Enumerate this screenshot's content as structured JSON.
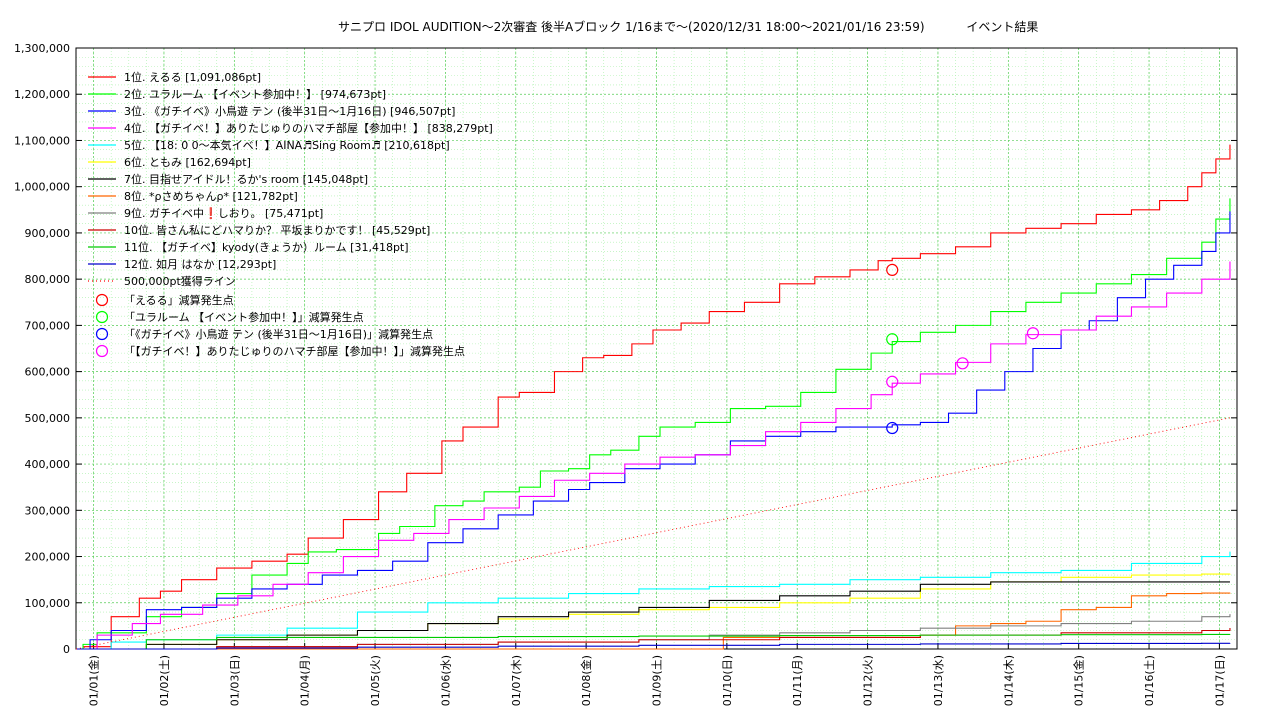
{
  "title": {
    "main": "サニプロ IDOL AUDITION〜2次審査 後半Aブロック 1/16まで〜(2020/12/31 18:00〜2021/01/16 23:59)",
    "suffix": "イベント結果"
  },
  "chart_data": {
    "type": "line",
    "ylim": [
      0,
      1300000
    ],
    "xlim": [
      0,
      16.5
    ],
    "grid": true,
    "legend_position": "top-left",
    "y_ticks": [
      {
        "value": 0,
        "label": "0"
      },
      {
        "value": 100000,
        "label": "100,000"
      },
      {
        "value": 200000,
        "label": "200,000"
      },
      {
        "value": 300000,
        "label": "300,000"
      },
      {
        "value": 400000,
        "label": "400,000"
      },
      {
        "value": 500000,
        "label": "500,000"
      },
      {
        "value": 600000,
        "label": "600,000"
      },
      {
        "value": 700000,
        "label": "700,000"
      },
      {
        "value": 800000,
        "label": "800,000"
      },
      {
        "value": 900000,
        "label": "900,000"
      },
      {
        "value": 1000000,
        "label": "1,000,000"
      },
      {
        "value": 1100000,
        "label": "1,100,000"
      },
      {
        "value": 1200000,
        "label": "1,200,000"
      },
      {
        "value": 1300000,
        "label": "1,300,000"
      }
    ],
    "x_ticks": [
      {
        "value": 0.25,
        "label": "01/01(金)"
      },
      {
        "value": 1.25,
        "label": "01/02(土)"
      },
      {
        "value": 2.25,
        "label": "01/03(日)"
      },
      {
        "value": 3.25,
        "label": "01/04(月)"
      },
      {
        "value": 4.25,
        "label": "01/05(火)"
      },
      {
        "value": 5.25,
        "label": "01/06(水)"
      },
      {
        "value": 6.25,
        "label": "01/07(木)"
      },
      {
        "value": 7.25,
        "label": "01/08(金)"
      },
      {
        "value": 8.25,
        "label": "01/09(土)"
      },
      {
        "value": 9.25,
        "label": "01/10(日)"
      },
      {
        "value": 10.25,
        "label": "01/11(月)"
      },
      {
        "value": 11.25,
        "label": "01/12(火)"
      },
      {
        "value": 12.25,
        "label": "01/13(水)"
      },
      {
        "value": 13.25,
        "label": "01/14(木)"
      },
      {
        "value": 14.25,
        "label": "01/15(金)"
      },
      {
        "value": 15.25,
        "label": "01/16(土)"
      },
      {
        "value": 16.25,
        "label": "01/17(日)"
      }
    ],
    "series": [
      {
        "name": "1位. えるる [1,091,086pt]",
        "color": "#ff0000",
        "x": [
          0,
          0.1,
          0.5,
          0.9,
          1.2,
          1.5,
          2,
          2.5,
          3,
          3.3,
          3.8,
          4.3,
          4.7,
          5.2,
          5.5,
          6.0,
          6.3,
          6.8,
          7.2,
          7.5,
          7.9,
          8.2,
          8.6,
          9,
          9.5,
          10,
          10.5,
          11,
          11.4,
          11.6,
          12.0,
          12.5,
          13.0,
          13.5,
          14.0,
          14.5,
          15.0,
          15.4,
          15.8,
          16.0,
          16.2,
          16.4
        ],
        "y": [
          0,
          5000,
          70000,
          110000,
          125000,
          150000,
          175000,
          190000,
          205000,
          240000,
          280000,
          340000,
          380000,
          450000,
          480000,
          545000,
          555000,
          600000,
          630000,
          635000,
          660000,
          690000,
          705000,
          730000,
          750000,
          790000,
          805000,
          820000,
          840000,
          845000,
          855000,
          870000,
          900000,
          910000,
          920000,
          940000,
          950000,
          970000,
          1000000,
          1030000,
          1060000,
          1091086
        ]
      },
      {
        "name": "2位. ユラルーム 【イベント参加中！】 [974,673pt]",
        "color": "#00ff00",
        "x": [
          0,
          0.1,
          0.3,
          1,
          1.5,
          2,
          2.5,
          3,
          3.3,
          3.7,
          4.3,
          4.6,
          5.1,
          5.5,
          5.8,
          6.3,
          6.6,
          7.0,
          7.3,
          7.6,
          8.0,
          8.3,
          8.8,
          9.3,
          9.8,
          10.3,
          10.8,
          11.3,
          11.6,
          12.0,
          12.5,
          13.0,
          13.5,
          14.0,
          14.5,
          15.0,
          15.5,
          16.0,
          16.2,
          16.4
        ],
        "y": [
          0,
          10000,
          35000,
          70000,
          90000,
          120000,
          160000,
          185000,
          210000,
          215000,
          250000,
          265000,
          310000,
          320000,
          340000,
          350000,
          385000,
          390000,
          420000,
          430000,
          460000,
          480000,
          490000,
          520000,
          525000,
          555000,
          605000,
          640000,
          665000,
          685000,
          700000,
          730000,
          750000,
          770000,
          790000,
          810000,
          845000,
          880000,
          930000,
          974673
        ]
      },
      {
        "name": "3位. 《ガチイベ》小鳥遊 テン (後半31日〜1月16日) [946,507pt]",
        "color": "#0000ff",
        "x": [
          0,
          0.2,
          0.5,
          1,
          1.5,
          2,
          2.5,
          3,
          3.5,
          4,
          4.5,
          5,
          5.5,
          6,
          6.5,
          7,
          7.3,
          7.8,
          8.3,
          8.8,
          9.3,
          9.8,
          10.3,
          10.8,
          11.3,
          11.6,
          12.0,
          12.4,
          12.8,
          13.2,
          13.6,
          14.0,
          14.4,
          14.8,
          15.2,
          15.6,
          16.0,
          16.2,
          16.4
        ],
        "y": [
          0,
          20000,
          40000,
          85000,
          90000,
          110000,
          130000,
          140000,
          160000,
          170000,
          190000,
          230000,
          260000,
          290000,
          320000,
          345000,
          360000,
          390000,
          400000,
          420000,
          450000,
          460000,
          470000,
          480000,
          480000,
          485000,
          490000,
          510000,
          560000,
          600000,
          650000,
          690000,
          710000,
          760000,
          800000,
          830000,
          860000,
          900000,
          946507
        ]
      },
      {
        "name": "4位. 【ガチイベ！】ありたじゅりのハマチ部屋【参加中！】 [838,279pt]",
        "color": "#ff00ff",
        "x": [
          0,
          0.3,
          0.8,
          1.2,
          1.8,
          2.3,
          2.8,
          3.3,
          3.8,
          4.3,
          4.8,
          5.3,
          5.8,
          6.3,
          6.8,
          7.3,
          7.8,
          8.3,
          8.8,
          9.3,
          9.8,
          10.3,
          10.8,
          11.3,
          11.6,
          12.0,
          12.5,
          13.0,
          13.5,
          14.0,
          14.5,
          15.0,
          15.5,
          16.0,
          16.4
        ],
        "y": [
          0,
          30000,
          55000,
          75000,
          95000,
          115000,
          140000,
          165000,
          200000,
          235000,
          250000,
          280000,
          305000,
          330000,
          365000,
          380000,
          400000,
          415000,
          420000,
          440000,
          470000,
          490000,
          520000,
          550000,
          575000,
          595000,
          620000,
          660000,
          680000,
          690000,
          720000,
          740000,
          770000,
          800000,
          838279
        ]
      },
      {
        "name": "5位. 【18: 0 0〜本気イベ！】AINA♬Sing Room♬ [210,618pt]",
        "color": "#00ffff",
        "x": [
          0,
          0.5,
          1,
          2,
          3,
          4,
          5,
          6,
          7,
          8,
          9,
          10,
          11,
          12,
          13,
          14,
          15,
          16,
          16.4
        ],
        "y": [
          0,
          15000,
          20000,
          30000,
          45000,
          80000,
          100000,
          110000,
          120000,
          130000,
          135000,
          140000,
          150000,
          155000,
          165000,
          170000,
          185000,
          200000,
          210618
        ]
      },
      {
        "name": "6位. ともみ [162,694pt]",
        "color": "#ffff00",
        "x": [
          0,
          1,
          2,
          3,
          4,
          5,
          6,
          7,
          8,
          9,
          10,
          11,
          12,
          13,
          14,
          15,
          16,
          16.4
        ],
        "y": [
          0,
          10000,
          20000,
          30000,
          40000,
          55000,
          65000,
          75000,
          85000,
          90000,
          100000,
          110000,
          130000,
          145000,
          155000,
          160000,
          162000,
          162694
        ]
      },
      {
        "name": "7位. 目指せアイドル！るか's room [145,048pt]",
        "color": "#000000",
        "x": [
          0,
          1,
          2,
          3,
          4,
          5,
          6,
          7,
          8,
          9,
          10,
          11,
          12,
          13,
          14,
          15,
          16,
          16.4
        ],
        "y": [
          0,
          10000,
          20000,
          30000,
          40000,
          55000,
          70000,
          80000,
          90000,
          105000,
          115000,
          125000,
          140000,
          145000,
          145000,
          145000,
          145048,
          145048
        ]
      },
      {
        "name": "8位. *ρさめちゃんρ* [121,782pt]",
        "color": "#ff6600",
        "x": [
          0,
          2,
          4,
          6,
          8,
          9,
          9.2,
          11,
          12,
          12.5,
          13,
          13.5,
          14,
          14.5,
          15,
          15.5,
          16,
          16.4
        ],
        "y": [
          0,
          0,
          0,
          0,
          0,
          0,
          25000,
          25000,
          30000,
          50000,
          55000,
          60000,
          85000,
          90000,
          115000,
          120000,
          121000,
          121782
        ]
      },
      {
        "name": "9位. ガチイベ中❗しおり。 [75,471pt]",
        "color": "#808080",
        "x": [
          0,
          2,
          4,
          6,
          8,
          9,
          10,
          11,
          12,
          13,
          14,
          15,
          16,
          16.4
        ],
        "y": [
          0,
          5000,
          10000,
          15000,
          20000,
          30000,
          35000,
          40000,
          45000,
          50000,
          55000,
          60000,
          70000,
          75471
        ]
      },
      {
        "name": "10位. 皆さん私にどハマりか？ 平坂まりかです！ [45,529pt]",
        "color": "#cc0000",
        "x": [
          0,
          2,
          4,
          6,
          8,
          10,
          12,
          14,
          16,
          16.4
        ],
        "y": [
          0,
          5000,
          10000,
          15000,
          20000,
          25000,
          30000,
          35000,
          40000,
          45529
        ]
      },
      {
        "name": "11位. 【ガチイベ】kyody(きょうか）ルーム [31,418pt]",
        "color": "#00cc00",
        "x": [
          0,
          1,
          2,
          4,
          6,
          8,
          10,
          12,
          14,
          16,
          16.4
        ],
        "y": [
          0,
          20000,
          25000,
          25000,
          27000,
          28000,
          29000,
          30000,
          31000,
          31400,
          31418
        ]
      },
      {
        "name": "12位. 如月 はなか [12,293pt]",
        "color": "#0000cc",
        "x": [
          0,
          2,
          4,
          6,
          8,
          10,
          12,
          14,
          16,
          16.4
        ],
        "y": [
          0,
          2000,
          4000,
          6000,
          8000,
          10000,
          11000,
          12000,
          12200,
          12293
        ]
      },
      {
        "name": "500,000pt獲得ライン",
        "color": "#ff0000",
        "dashed": true,
        "x": [
          0,
          16.4
        ],
        "y": [
          0,
          500000
        ]
      }
    ],
    "markers": [
      {
        "name": "「えるる」減算発生点",
        "color": "#ff0000",
        "points": [
          {
            "x": 11.6,
            "y": 820000
          }
        ]
      },
      {
        "name": "「ユラルーム 【イベント参加中！】」減算発生点",
        "color": "#00ff00",
        "points": [
          {
            "x": 11.6,
            "y": 670000
          }
        ]
      },
      {
        "name": "「《ガチイベ》小鳥遊 テン (後半31日〜1月16日)」減算発生点",
        "color": "#0000ff",
        "points": [
          {
            "x": 11.6,
            "y": 478000
          }
        ]
      },
      {
        "name": "「【ガチイベ！】ありたじゅりのハマチ部屋【参加中！】」減算発生点",
        "color": "#ff00ff",
        "points": [
          {
            "x": 11.6,
            "y": 578000
          },
          {
            "x": 12.6,
            "y": 618000
          },
          {
            "x": 13.6,
            "y": 683000
          }
        ]
      }
    ]
  }
}
